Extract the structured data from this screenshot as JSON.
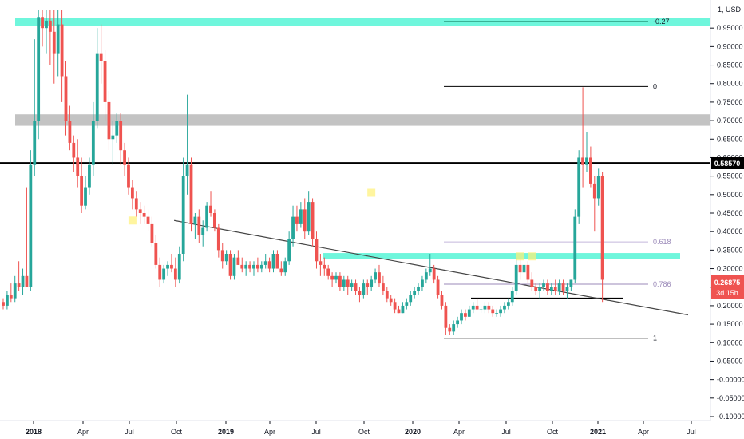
{
  "currency_label": "1, USD",
  "colors": {
    "up": "#26a69a",
    "down": "#ef5350",
    "zone_teal": "#5ff5d8",
    "zone_gray": "#a9a9a9",
    "line": "#000000",
    "fib_label": "#9b8ab9",
    "price_badge": "#ef5350",
    "level_badge": "#000000"
  },
  "price_badges": {
    "level": "0.58570",
    "last": "0.26875",
    "countdown": "3d 15h"
  },
  "chart_data": {
    "type": "candlestick",
    "title": "",
    "ylim": [
      -0.1,
      1.0
    ],
    "y_ticks": [
      "-0.10000",
      "-0.05000",
      "-0.00000",
      "0.05000",
      "0.10000",
      "0.15000",
      "0.20000",
      "0.25000",
      "0.30000",
      "0.35000",
      "0.40000",
      "0.45000",
      "0.50000",
      "0.55000",
      "0.60000",
      "0.65000",
      "0.70000",
      "0.75000",
      "0.80000",
      "0.85000",
      "0.90000",
      "0.95000"
    ],
    "x_ticks": [
      "2018",
      "Apr",
      "Jul",
      "Oct",
      "2019",
      "Apr",
      "Jul",
      "Oct",
      "2020",
      "Apr",
      "Jul",
      "Oct",
      "2021",
      "Apr",
      "Jul"
    ],
    "grid": false,
    "zones": [
      {
        "name": "upper-teal-zone",
        "y_low": 0.955,
        "y_high": 0.978,
        "color": "teal"
      },
      {
        "name": "gray-resistance-zone",
        "y_low": 0.686,
        "y_high": 0.717,
        "color": "gray"
      },
      {
        "name": "middle-teal-zone",
        "y_low": 0.327,
        "y_high": 0.342,
        "color": "teal"
      }
    ],
    "horizontal_level": 0.5857,
    "support_line": 0.22,
    "trendline": {
      "from": {
        "x": "2018-10-01",
        "y": 0.43
      },
      "to": {
        "x": "2021-06-25",
        "y": 0.175
      }
    },
    "fib_levels": [
      {
        "label": "-0.27",
        "value": 0.968
      },
      {
        "label": "0",
        "value": 0.792
      },
      {
        "label": "0.618",
        "value": 0.372
      },
      {
        "label": "0.786",
        "value": 0.258
      },
      {
        "label": "1",
        "value": 0.112
      }
    ],
    "candles": [
      [
        0.21,
        0.22,
        0.19,
        0.2
      ],
      [
        0.2,
        0.24,
        0.19,
        0.23
      ],
      [
        0.23,
        0.26,
        0.21,
        0.22
      ],
      [
        0.22,
        0.28,
        0.21,
        0.26
      ],
      [
        0.26,
        0.32,
        0.24,
        0.25
      ],
      [
        0.25,
        0.3,
        0.23,
        0.28
      ],
      [
        0.28,
        0.52,
        0.26,
        0.25
      ],
      [
        0.25,
        0.62,
        0.24,
        0.58
      ],
      [
        0.58,
        0.92,
        0.55,
        0.7
      ],
      [
        0.7,
        1.0,
        0.65,
        0.98
      ],
      [
        0.98,
        1.0,
        0.9,
        0.95
      ],
      [
        0.95,
        1.0,
        0.88,
        0.97
      ],
      [
        0.97,
        1.0,
        0.85,
        0.94
      ],
      [
        0.94,
        1.0,
        0.8,
        0.88
      ],
      [
        0.88,
        1.0,
        0.82,
        0.96
      ],
      [
        0.96,
        1.0,
        0.75,
        0.82
      ],
      [
        0.82,
        0.86,
        0.66,
        0.7
      ],
      [
        0.7,
        0.74,
        0.62,
        0.64
      ],
      [
        0.64,
        0.66,
        0.56,
        0.6
      ],
      [
        0.6,
        0.65,
        0.52,
        0.55
      ],
      [
        0.55,
        0.6,
        0.45,
        0.47
      ],
      [
        0.47,
        0.55,
        0.46,
        0.52
      ],
      [
        0.52,
        0.6,
        0.5,
        0.58
      ],
      [
        0.58,
        0.75,
        0.55,
        0.7
      ],
      [
        0.7,
        0.95,
        0.68,
        0.88
      ],
      [
        0.88,
        0.96,
        0.8,
        0.86
      ],
      [
        0.86,
        0.89,
        0.7,
        0.75
      ],
      [
        0.75,
        0.78,
        0.62,
        0.65
      ],
      [
        0.65,
        0.7,
        0.58,
        0.66
      ],
      [
        0.66,
        0.72,
        0.64,
        0.7
      ],
      [
        0.7,
        0.72,
        0.58,
        0.62
      ],
      [
        0.62,
        0.64,
        0.55,
        0.58
      ],
      [
        0.58,
        0.6,
        0.5,
        0.52
      ],
      [
        0.52,
        0.54,
        0.46,
        0.49
      ],
      [
        0.49,
        0.51,
        0.44,
        0.46
      ],
      [
        0.46,
        0.48,
        0.42,
        0.45
      ],
      [
        0.45,
        0.47,
        0.42,
        0.44
      ],
      [
        0.44,
        0.46,
        0.4,
        0.42
      ],
      [
        0.42,
        0.44,
        0.36,
        0.37
      ],
      [
        0.37,
        0.39,
        0.3,
        0.31
      ],
      [
        0.31,
        0.33,
        0.25,
        0.27
      ],
      [
        0.27,
        0.31,
        0.26,
        0.3
      ],
      [
        0.3,
        0.32,
        0.28,
        0.31
      ],
      [
        0.31,
        0.34,
        0.29,
        0.3
      ],
      [
        0.3,
        0.33,
        0.25,
        0.27
      ],
      [
        0.27,
        0.36,
        0.26,
        0.34
      ],
      [
        0.34,
        0.6,
        0.32,
        0.55
      ],
      [
        0.55,
        0.77,
        0.5,
        0.58
      ],
      [
        0.58,
        0.6,
        0.4,
        0.42
      ],
      [
        0.42,
        0.45,
        0.38,
        0.44
      ],
      [
        0.44,
        0.46,
        0.37,
        0.39
      ],
      [
        0.39,
        0.43,
        0.36,
        0.41
      ],
      [
        0.41,
        0.48,
        0.4,
        0.47
      ],
      [
        0.47,
        0.51,
        0.44,
        0.45
      ],
      [
        0.45,
        0.46,
        0.4,
        0.41
      ],
      [
        0.41,
        0.42,
        0.33,
        0.35
      ],
      [
        0.35,
        0.37,
        0.3,
        0.32
      ],
      [
        0.32,
        0.35,
        0.31,
        0.34
      ],
      [
        0.34,
        0.35,
        0.27,
        0.28
      ],
      [
        0.28,
        0.34,
        0.27,
        0.33
      ],
      [
        0.33,
        0.35,
        0.31,
        0.31
      ],
      [
        0.31,
        0.33,
        0.29,
        0.3
      ],
      [
        0.3,
        0.32,
        0.28,
        0.31
      ],
      [
        0.31,
        0.32,
        0.29,
        0.3
      ],
      [
        0.3,
        0.32,
        0.28,
        0.31
      ],
      [
        0.31,
        0.33,
        0.29,
        0.3
      ],
      [
        0.3,
        0.32,
        0.29,
        0.31
      ],
      [
        0.31,
        0.34,
        0.3,
        0.32
      ],
      [
        0.32,
        0.33,
        0.29,
        0.3
      ],
      [
        0.3,
        0.35,
        0.29,
        0.34
      ],
      [
        0.34,
        0.35,
        0.3,
        0.3
      ],
      [
        0.3,
        0.32,
        0.28,
        0.29
      ],
      [
        0.29,
        0.33,
        0.28,
        0.32
      ],
      [
        0.32,
        0.4,
        0.31,
        0.38
      ],
      [
        0.38,
        0.47,
        0.36,
        0.44
      ],
      [
        0.44,
        0.47,
        0.4,
        0.42
      ],
      [
        0.42,
        0.48,
        0.41,
        0.46
      ],
      [
        0.46,
        0.49,
        0.38,
        0.4
      ],
      [
        0.4,
        0.51,
        0.39,
        0.48
      ],
      [
        0.48,
        0.49,
        0.36,
        0.38
      ],
      [
        0.38,
        0.4,
        0.3,
        0.32
      ],
      [
        0.32,
        0.34,
        0.28,
        0.31
      ],
      [
        0.31,
        0.33,
        0.28,
        0.3
      ],
      [
        0.3,
        0.31,
        0.27,
        0.28
      ],
      [
        0.28,
        0.29,
        0.25,
        0.27
      ],
      [
        0.27,
        0.29,
        0.26,
        0.28
      ],
      [
        0.28,
        0.29,
        0.24,
        0.25
      ],
      [
        0.25,
        0.28,
        0.24,
        0.27
      ],
      [
        0.27,
        0.28,
        0.23,
        0.25
      ],
      [
        0.25,
        0.27,
        0.24,
        0.26
      ],
      [
        0.26,
        0.27,
        0.23,
        0.24
      ],
      [
        0.24,
        0.25,
        0.21,
        0.23
      ],
      [
        0.23,
        0.27,
        0.22,
        0.26
      ],
      [
        0.26,
        0.27,
        0.23,
        0.25
      ],
      [
        0.25,
        0.28,
        0.24,
        0.27
      ],
      [
        0.27,
        0.3,
        0.26,
        0.29
      ],
      [
        0.29,
        0.31,
        0.25,
        0.26
      ],
      [
        0.26,
        0.28,
        0.23,
        0.24
      ],
      [
        0.24,
        0.25,
        0.21,
        0.22
      ],
      [
        0.22,
        0.23,
        0.2,
        0.21
      ],
      [
        0.21,
        0.22,
        0.18,
        0.19
      ],
      [
        0.19,
        0.2,
        0.18,
        0.18
      ],
      [
        0.18,
        0.21,
        0.18,
        0.2
      ],
      [
        0.2,
        0.22,
        0.19,
        0.21
      ],
      [
        0.21,
        0.24,
        0.2,
        0.23
      ],
      [
        0.23,
        0.25,
        0.22,
        0.24
      ],
      [
        0.24,
        0.26,
        0.23,
        0.25
      ],
      [
        0.25,
        0.28,
        0.24,
        0.27
      ],
      [
        0.27,
        0.3,
        0.26,
        0.29
      ],
      [
        0.29,
        0.34,
        0.28,
        0.3
      ],
      [
        0.3,
        0.31,
        0.26,
        0.27
      ],
      [
        0.27,
        0.28,
        0.22,
        0.23
      ],
      [
        0.23,
        0.24,
        0.19,
        0.2
      ],
      [
        0.2,
        0.21,
        0.12,
        0.14
      ],
      [
        0.14,
        0.15,
        0.12,
        0.13
      ],
      [
        0.13,
        0.16,
        0.12,
        0.15
      ],
      [
        0.15,
        0.17,
        0.14,
        0.16
      ],
      [
        0.16,
        0.19,
        0.15,
        0.18
      ],
      [
        0.18,
        0.19,
        0.16,
        0.17
      ],
      [
        0.17,
        0.2,
        0.17,
        0.19
      ],
      [
        0.19,
        0.21,
        0.18,
        0.2
      ],
      [
        0.2,
        0.22,
        0.19,
        0.19
      ],
      [
        0.19,
        0.2,
        0.18,
        0.19
      ],
      [
        0.19,
        0.21,
        0.18,
        0.2
      ],
      [
        0.2,
        0.21,
        0.18,
        0.19
      ],
      [
        0.19,
        0.2,
        0.17,
        0.18
      ],
      [
        0.18,
        0.19,
        0.17,
        0.18
      ],
      [
        0.18,
        0.2,
        0.17,
        0.19
      ],
      [
        0.19,
        0.21,
        0.18,
        0.2
      ],
      [
        0.2,
        0.22,
        0.19,
        0.21
      ],
      [
        0.21,
        0.25,
        0.2,
        0.24
      ],
      [
        0.24,
        0.33,
        0.23,
        0.31
      ],
      [
        0.31,
        0.33,
        0.27,
        0.29
      ],
      [
        0.29,
        0.33,
        0.28,
        0.31
      ],
      [
        0.31,
        0.32,
        0.26,
        0.27
      ],
      [
        0.27,
        0.29,
        0.24,
        0.25
      ],
      [
        0.25,
        0.26,
        0.23,
        0.24
      ],
      [
        0.24,
        0.26,
        0.22,
        0.25
      ],
      [
        0.25,
        0.27,
        0.24,
        0.26
      ],
      [
        0.26,
        0.27,
        0.23,
        0.24
      ],
      [
        0.24,
        0.26,
        0.23,
        0.25
      ],
      [
        0.25,
        0.27,
        0.23,
        0.24
      ],
      [
        0.24,
        0.27,
        0.23,
        0.26
      ],
      [
        0.26,
        0.27,
        0.23,
        0.24
      ],
      [
        0.24,
        0.26,
        0.22,
        0.25
      ],
      [
        0.25,
        0.27,
        0.24,
        0.27
      ],
      [
        0.27,
        0.46,
        0.26,
        0.44
      ],
      [
        0.44,
        0.62,
        0.42,
        0.6
      ],
      [
        0.6,
        0.79,
        0.52,
        0.58
      ],
      [
        0.58,
        0.67,
        0.56,
        0.6
      ],
      [
        0.6,
        0.63,
        0.52,
        0.53
      ],
      [
        0.53,
        0.55,
        0.4,
        0.49
      ],
      [
        0.49,
        0.57,
        0.47,
        0.55
      ],
      [
        0.55,
        0.56,
        0.21,
        0.27
      ]
    ]
  }
}
